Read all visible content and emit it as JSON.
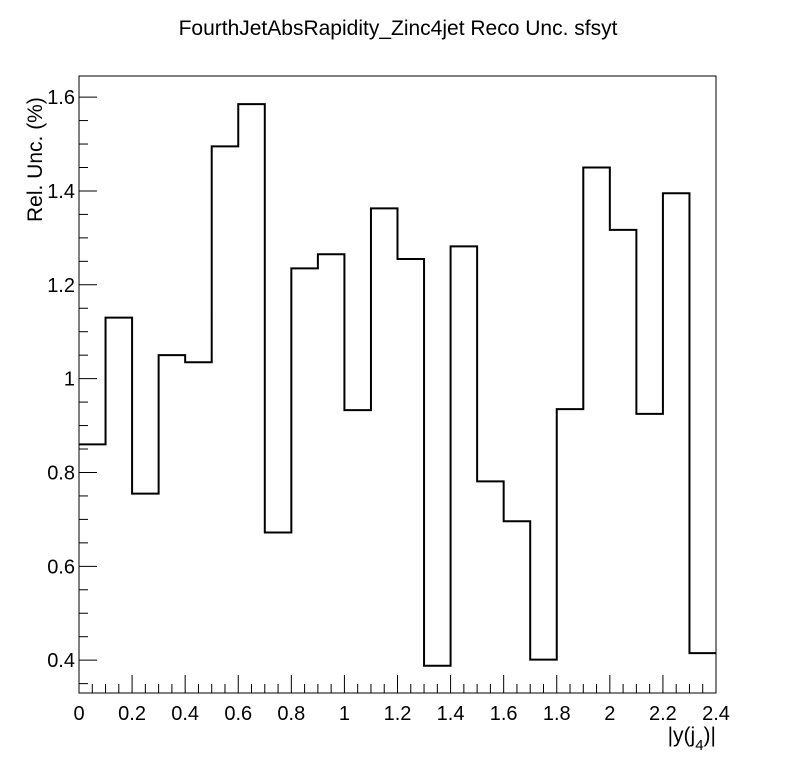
{
  "chart_data": {
    "type": "histogram",
    "title": "FourthJetAbsRapidity_Zinc4jet Reco Unc. sfsyt",
    "xlabel": "|y(j",
    "xlabel_subscript": "4",
    "xlabel_suffix": ")|",
    "ylabel": "Rel. Unc. (%)",
    "xlim": [
      0,
      2.4
    ],
    "ylim": [
      0.33,
      1.645
    ],
    "bin_edges": [
      0,
      0.1,
      0.2,
      0.3,
      0.4,
      0.5,
      0.6,
      0.7,
      0.8,
      0.9,
      1.0,
      1.1,
      1.2,
      1.3,
      1.4,
      1.5,
      1.6,
      1.7,
      1.8,
      1.9,
      2.0,
      2.1,
      2.2,
      2.3,
      2.4
    ],
    "values": [
      0.86,
      1.13,
      0.755,
      1.05,
      1.035,
      1.495,
      1.585,
      0.672,
      1.235,
      1.265,
      0.933,
      1.363,
      1.255,
      0.388,
      1.282,
      0.781,
      0.696,
      0.401,
      0.935,
      1.45,
      1.317,
      0.925,
      1.395,
      0.415
    ],
    "x_ticks": [
      0,
      0.2,
      0.4,
      0.6,
      0.8,
      1.0,
      1.2,
      1.4,
      1.6,
      1.8,
      2.0,
      2.2,
      2.4
    ],
    "x_tick_labels": [
      "0",
      "0.2",
      "0.4",
      "0.6",
      "0.8",
      "1",
      "1.2",
      "1.4",
      "1.6",
      "1.8",
      "2",
      "2.2",
      "2.4"
    ],
    "y_ticks": [
      0.4,
      0.6,
      0.8,
      1.0,
      1.2,
      1.4,
      1.6
    ],
    "y_tick_labels": [
      "0.4",
      "0.6",
      "0.8",
      "1",
      "1.2",
      "1.4",
      "1.6"
    ],
    "grid": false,
    "line_color": "#000000"
  }
}
